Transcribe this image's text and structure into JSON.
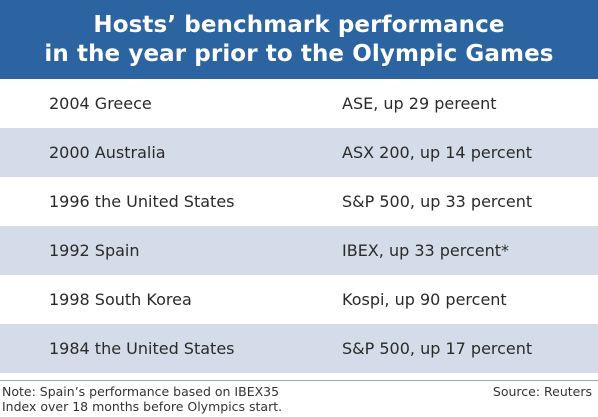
{
  "header": {
    "title_line1": "Hosts’ benchmark performance",
    "title_line2": "in the year prior to the Olympic Games"
  },
  "colors": {
    "header_bg": "#2b64a0",
    "row_shaded": "#d4dce9"
  },
  "chart_data": {
    "type": "table",
    "title": "Hosts’ benchmark performance in the year prior to the Olympic Games",
    "rows": [
      {
        "host": "2004 Greece",
        "performance": "ASE, up 29 pereent"
      },
      {
        "host": "2000 Australia",
        "performance": "ASX 200, up 14 percent"
      },
      {
        "host": "1996 the United States",
        "performance": "S&P 500, up 33 percent"
      },
      {
        "host": "1992 Spain",
        "performance": "IBEX, up 33 percent*"
      },
      {
        "host": "1998 South Korea",
        "performance": "Kospi, up 90 percent"
      },
      {
        "host": "1984 the United States",
        "performance": "S&P 500, up 17 percent"
      }
    ]
  },
  "footer": {
    "note_line1": "Note: Spain’s performance based on IBEX35",
    "note_line2": "Index over 18 months before Olympics start.",
    "source": "Source: Reuters"
  }
}
